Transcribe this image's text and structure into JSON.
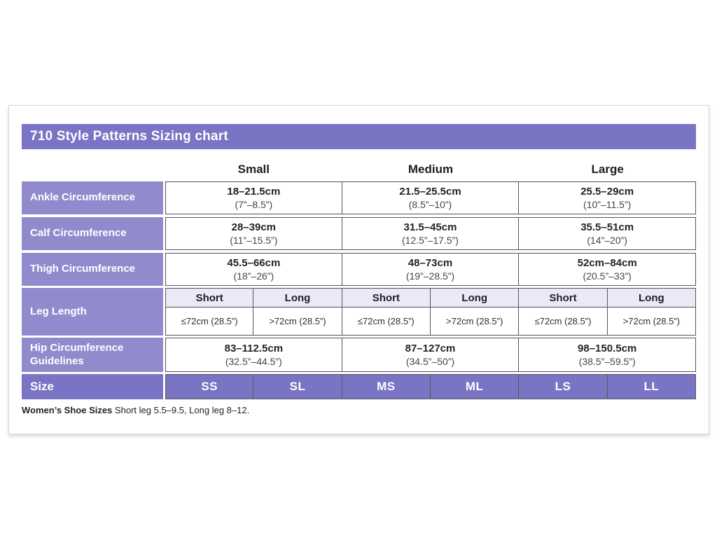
{
  "title": "710 Style Patterns Sizing chart",
  "size_groups": [
    "Small",
    "Medium",
    "Large"
  ],
  "rows": [
    {
      "label": "Ankle Circumference",
      "cells": [
        {
          "cm": "18–21.5cm",
          "in": "(7”–8.5”)"
        },
        {
          "cm": "21.5–25.5cm",
          "in": "(8.5”–10”)"
        },
        {
          "cm": "25.5–29cm",
          "in": "(10”–11.5”)"
        }
      ]
    },
    {
      "label": "Calf Circumference",
      "cells": [
        {
          "cm": "28–39cm",
          "in": "(11”–15.5”)"
        },
        {
          "cm": "31.5–45cm",
          "in": "(12.5”–17.5”)"
        },
        {
          "cm": "35.5–51cm",
          "in": "(14”–20”)"
        }
      ]
    },
    {
      "label": "Thigh Circumference",
      "cells": [
        {
          "cm": "45.5–66cm",
          "in": "(18”–26”)"
        },
        {
          "cm": "48–73cm",
          "in": "(19”–28.5”)"
        },
        {
          "cm": "52cm–84cm",
          "in": "(20.5”–33”)"
        }
      ]
    }
  ],
  "leg_length": {
    "label": "Leg Length",
    "sub_headers": [
      "Short",
      "Long",
      "Short",
      "Long",
      "Short",
      "Long"
    ],
    "values": [
      "≤72cm (28.5”)",
      ">72cm (28.5”)",
      "≤72cm (28.5”)",
      ">72cm (28.5”)",
      "≤72cm (28.5”)",
      ">72cm (28.5”)"
    ]
  },
  "hip": {
    "label": "Hip Circumference Guidelines",
    "cells": [
      {
        "cm": "83–112.5cm",
        "in": "(32.5”–44.5”)"
      },
      {
        "cm": "87–127cm",
        "in": "(34.5”–50”)"
      },
      {
        "cm": "98–150.5cm",
        "in": "(38.5”–59.5”)"
      }
    ]
  },
  "size_row": {
    "label": "Size",
    "values": [
      "SS",
      "SL",
      "MS",
      "ML",
      "LS",
      "LL"
    ]
  },
  "footnote": {
    "bold": "Women’s Shoe Sizes",
    "rest": " Short leg 5.5–9.5, Long leg 8–12."
  },
  "colors": {
    "purple_dark": "#7a74c4",
    "purple_light": "#918bce",
    "lavender": "#eae9f6",
    "cell_border": "#54545c"
  }
}
